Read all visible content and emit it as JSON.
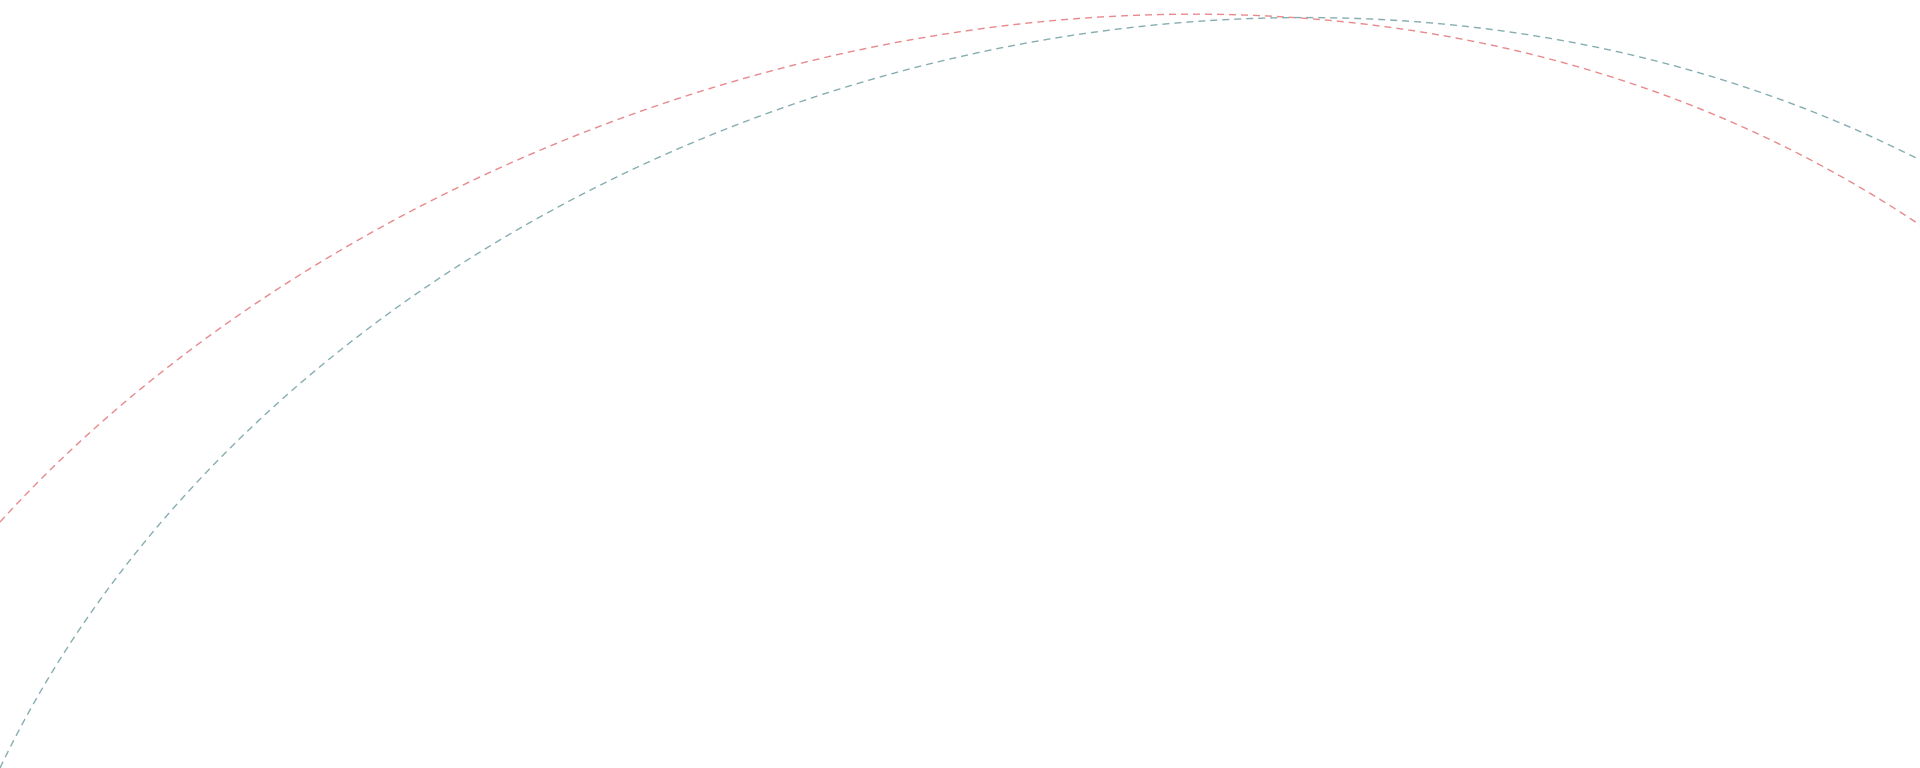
{
  "arcs": [
    {
      "name": "red-dashed-arc",
      "color": "#E8898C"
    },
    {
      "name": "teal-dashed-arc",
      "color": "#86ADB0"
    }
  ]
}
